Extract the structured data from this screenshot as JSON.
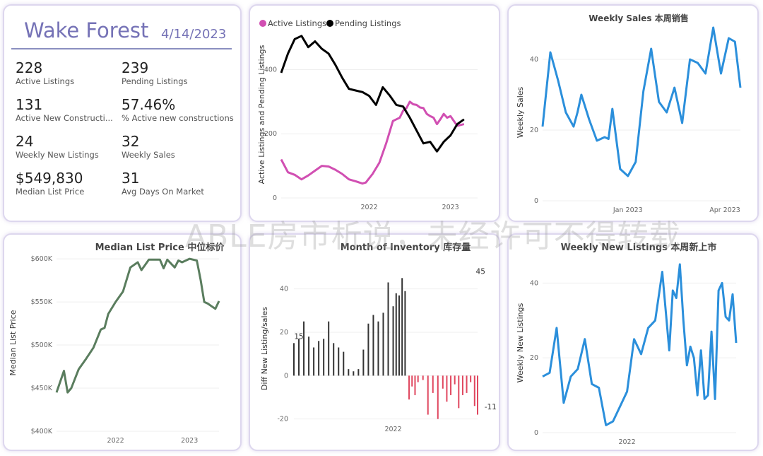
{
  "kpi_panel": {
    "title": "Wake Forest",
    "date": "4/14/2023",
    "metrics": [
      {
        "value": "228",
        "label": "Active Listings"
      },
      {
        "value": "239",
        "label": "Pending Listings"
      },
      {
        "value": "131",
        "label": "Active New Constructi..."
      },
      {
        "value": "57.46%",
        "label": "% Active new constructions"
      },
      {
        "value": "24",
        "label": "Weekly New Listings"
      },
      {
        "value": "32",
        "label": "Weekly Sales"
      },
      {
        "value": "$549,830",
        "label": "Median List Price"
      },
      {
        "value": "31",
        "label": "Avg Days On Market"
      }
    ]
  },
  "watermark": "ABLE房市析说，未经许可不得转载",
  "colors": {
    "active": "#d14fb2",
    "pending": "#000000",
    "blue": "#2b8fdb",
    "green": "#5a7d5e",
    "bar": "#333333",
    "neg": "#e0475f",
    "accent": "#7572b6"
  },
  "chart_data": [
    {
      "type": "line",
      "title": "",
      "legend": [
        "Active Listings",
        "Pending Listings"
      ],
      "legend_position": "top-left",
      "ylabel": "Active Listings and Pending Listings",
      "xlabel": "",
      "ylim": [
        0,
        520
      ],
      "yticks": [
        0,
        200,
        400
      ],
      "xticks": [
        {
          "label": "2022",
          "t": 18
        },
        {
          "label": "2023",
          "t": 30
        }
      ],
      "xlim": [
        5,
        34
      ],
      "series": [
        {
          "name": "Active Listings",
          "points": [
            [
              5,
              120
            ],
            [
              6,
              80
            ],
            [
              7,
              72
            ],
            [
              8,
              58
            ],
            [
              9,
              70
            ],
            [
              10,
              85
            ],
            [
              11,
              100
            ],
            [
              12,
              98
            ],
            [
              13,
              88
            ],
            [
              14,
              75
            ],
            [
              15,
              58
            ],
            [
              16,
              52
            ],
            [
              17,
              45
            ],
            [
              17.5,
              48
            ],
            [
              18.5,
              75
            ],
            [
              19.5,
              110
            ],
            [
              20.5,
              170
            ],
            [
              21.5,
              240
            ],
            [
              22,
              245
            ],
            [
              22.5,
              250
            ],
            [
              23,
              272
            ],
            [
              23.5,
              280
            ],
            [
              24,
              300
            ],
            [
              24.5,
              292
            ],
            [
              25,
              290
            ],
            [
              25.5,
              282
            ],
            [
              26,
              280
            ],
            [
              26.5,
              262
            ],
            [
              27,
              255
            ],
            [
              27.5,
              250
            ],
            [
              28,
              230
            ],
            [
              28.5,
              245
            ],
            [
              29,
              262
            ],
            [
              29.5,
              250
            ],
            [
              30,
              255
            ],
            [
              30.5,
              240
            ],
            [
              31,
              225
            ],
            [
              32,
              230
            ]
          ]
        },
        {
          "name": "Pending Listings",
          "points": [
            [
              5,
              390
            ],
            [
              6,
              450
            ],
            [
              7,
              495
            ],
            [
              8,
              505
            ],
            [
              9,
              470
            ],
            [
              10,
              488
            ],
            [
              11,
              465
            ],
            [
              12,
              450
            ],
            [
              13,
              415
            ],
            [
              14,
              375
            ],
            [
              15,
              340
            ],
            [
              16,
              335
            ],
            [
              17,
              330
            ],
            [
              18,
              318
            ],
            [
              19,
              290
            ],
            [
              20,
              345
            ],
            [
              21,
              320
            ],
            [
              22,
              290
            ],
            [
              23,
              285
            ],
            [
              24,
              250
            ],
            [
              25,
              210
            ],
            [
              26,
              170
            ],
            [
              27,
              175
            ],
            [
              28,
              145
            ],
            [
              29,
              175
            ],
            [
              30,
              195
            ],
            [
              31,
              230
            ],
            [
              32,
              245
            ]
          ]
        }
      ]
    },
    {
      "type": "line",
      "title": "Weekly Sales 本周销售",
      "ylabel": "Weekly Sales",
      "xlabel": "",
      "ylim": [
        0,
        50
      ],
      "yticks": [
        0,
        20,
        40
      ],
      "xticks": [
        {
          "label": "Jan 2023",
          "t": 11
        },
        {
          "label": "Apr 2023",
          "t": 23.5
        }
      ],
      "series": [
        {
          "name": "Weekly Sales",
          "points": [
            [
              0,
              21
            ],
            [
              1,
              42
            ],
            [
              2,
              34
            ],
            [
              3,
              25
            ],
            [
              4,
              21
            ],
            [
              4.5,
              25
            ],
            [
              5,
              30
            ],
            [
              6,
              23
            ],
            [
              7,
              17
            ],
            [
              8,
              18
            ],
            [
              8.5,
              17.5
            ],
            [
              9,
              26
            ],
            [
              10,
              9
            ],
            [
              11,
              7
            ],
            [
              11.5,
              9
            ],
            [
              12,
              11
            ],
            [
              13,
              31
            ],
            [
              14,
              43
            ],
            [
              15,
              28
            ],
            [
              16,
              25
            ],
            [
              17,
              32
            ],
            [
              18,
              22
            ],
            [
              19,
              40
            ],
            [
              20,
              39
            ],
            [
              21,
              36
            ],
            [
              22,
              49
            ],
            [
              23,
              36
            ],
            [
              24,
              46
            ],
            [
              24.8,
              45
            ],
            [
              25.5,
              32
            ]
          ]
        }
      ]
    },
    {
      "type": "line",
      "title": "Median List Price 中位标价",
      "ylabel": "Median List Price",
      "xlabel": "",
      "ylim": [
        400000,
        605000
      ],
      "yticks": [
        {
          "label": "$400K",
          "v": 400000
        },
        {
          "label": "$450K",
          "v": 450000
        },
        {
          "label": "$500K",
          "v": 500000
        },
        {
          "label": "$550K",
          "v": 550000
        },
        {
          "label": "$600K",
          "v": 600000
        }
      ],
      "xticks": [
        {
          "label": "2022",
          "t": 8
        },
        {
          "label": "2023",
          "t": 18
        }
      ],
      "series": [
        {
          "name": "Median List Price",
          "points": [
            [
              0,
              445000
            ],
            [
              1,
              470000
            ],
            [
              1.5,
              445000
            ],
            [
              2,
              450000
            ],
            [
              3,
              472000
            ],
            [
              4,
              484000
            ],
            [
              5,
              497000
            ],
            [
              6,
              518000
            ],
            [
              6.5,
              520000
            ],
            [
              7,
              536000
            ],
            [
              8,
              550000
            ],
            [
              9,
              562000
            ],
            [
              10,
              590000
            ],
            [
              11,
              596000
            ],
            [
              11.5,
              587000
            ],
            [
              12,
              593000
            ],
            [
              12.5,
              599000
            ],
            [
              13,
              599000
            ],
            [
              14,
              599000
            ],
            [
              14.5,
              589000
            ],
            [
              15,
              599000
            ],
            [
              16,
              590000
            ],
            [
              16.5,
              598000
            ],
            [
              17,
              596000
            ],
            [
              18,
              600000
            ],
            [
              19,
              598000
            ],
            [
              19.5,
              576000
            ],
            [
              20,
              550000
            ],
            [
              20.5,
              548000
            ],
            [
              21,
              545000
            ],
            [
              21.5,
              542000
            ],
            [
              22,
              551000
            ]
          ]
        }
      ]
    },
    {
      "type": "bar",
      "title": "Month of Inventory 库存量",
      "ylabel": "Diff New Listing/sales",
      "xlabel": "",
      "ylim": [
        -25,
        50
      ],
      "yticks": [
        -20,
        0,
        20,
        40
      ],
      "xticks": [
        {
          "label": "2022",
          "t": 10
        },
        {
          "label": "2023",
          "t": 21.5
        }
      ],
      "data_labels": [
        {
          "label": "15",
          "t": 0.5,
          "v": 15
        },
        {
          "label": "45",
          "t": 18.8,
          "v": 45
        },
        {
          "label": "-11",
          "t": 19.8,
          "v": -11
        },
        {
          "label": "-20",
          "t": 22,
          "v": -20
        },
        {
          "label": "-8",
          "t": 25,
          "v": -8
        }
      ],
      "values": [
        [
          0,
          15
        ],
        [
          0.5,
          17
        ],
        [
          1,
          25
        ],
        [
          1.5,
          18
        ],
        [
          2,
          13
        ],
        [
          2.5,
          16
        ],
        [
          3,
          17
        ],
        [
          3.5,
          25
        ],
        [
          4,
          15
        ],
        [
          4.5,
          13
        ],
        [
          5,
          11
        ],
        [
          5.5,
          3
        ],
        [
          6,
          2
        ],
        [
          6.5,
          3
        ],
        [
          7,
          12
        ],
        [
          7.5,
          24
        ],
        [
          8,
          28
        ],
        [
          8.5,
          25
        ],
        [
          9,
          29
        ],
        [
          9.5,
          43
        ],
        [
          10,
          32
        ],
        [
          10.3,
          38
        ],
        [
          10.6,
          37
        ],
        [
          10.9,
          45
        ],
        [
          11.2,
          39
        ],
        [
          11.6,
          -11
        ],
        [
          11.9,
          -5
        ],
        [
          12.2,
          -9
        ],
        [
          12.5,
          -3
        ],
        [
          13,
          -2
        ],
        [
          13.5,
          -18
        ],
        [
          14,
          -8
        ],
        [
          14.5,
          -20
        ],
        [
          15,
          -6
        ],
        [
          15.4,
          -12
        ],
        [
          15.8,
          -9
        ],
        [
          16.2,
          -4
        ],
        [
          16.6,
          -15
        ],
        [
          17,
          -9
        ],
        [
          17.4,
          -8
        ],
        [
          17.8,
          -3
        ],
        [
          18.2,
          -14
        ],
        [
          18.5,
          -18
        ]
      ]
    },
    {
      "type": "line",
      "title": "Weekly New Listings 本周新上市",
      "ylabel": "Weekly New Listings",
      "xlabel": "",
      "ylim": [
        0,
        48
      ],
      "yticks": [
        0,
        20,
        40
      ],
      "xticks": [
        {
          "label": "2022",
          "t": 12
        },
        {
          "label": "2023",
          "t": 33
        }
      ],
      "series": [
        {
          "name": "Weekly New Listings",
          "points": [
            [
              0,
              15
            ],
            [
              1,
              16
            ],
            [
              2,
              28
            ],
            [
              3,
              8
            ],
            [
              4,
              15
            ],
            [
              5,
              17
            ],
            [
              6,
              25
            ],
            [
              7,
              13
            ],
            [
              8,
              12
            ],
            [
              9,
              2
            ],
            [
              10,
              3
            ],
            [
              11,
              7
            ],
            [
              12,
              11
            ],
            [
              13,
              25
            ],
            [
              14,
              21
            ],
            [
              15,
              28
            ],
            [
              16,
              30
            ],
            [
              17,
              43
            ],
            [
              18,
              22
            ],
            [
              18.5,
              38
            ],
            [
              19,
              36
            ],
            [
              19.5,
              45
            ],
            [
              20,
              30
            ],
            [
              20.5,
              18
            ],
            [
              21,
              23
            ],
            [
              21.5,
              20
            ],
            [
              22,
              10
            ],
            [
              22.5,
              22
            ],
            [
              23,
              9
            ],
            [
              23.5,
              10
            ],
            [
              24,
              27
            ],
            [
              24.5,
              9
            ],
            [
              25,
              38
            ],
            [
              25.5,
              40
            ],
            [
              26,
              31
            ],
            [
              26.5,
              30
            ],
            [
              27,
              37
            ],
            [
              27.5,
              24
            ]
          ]
        }
      ]
    }
  ]
}
